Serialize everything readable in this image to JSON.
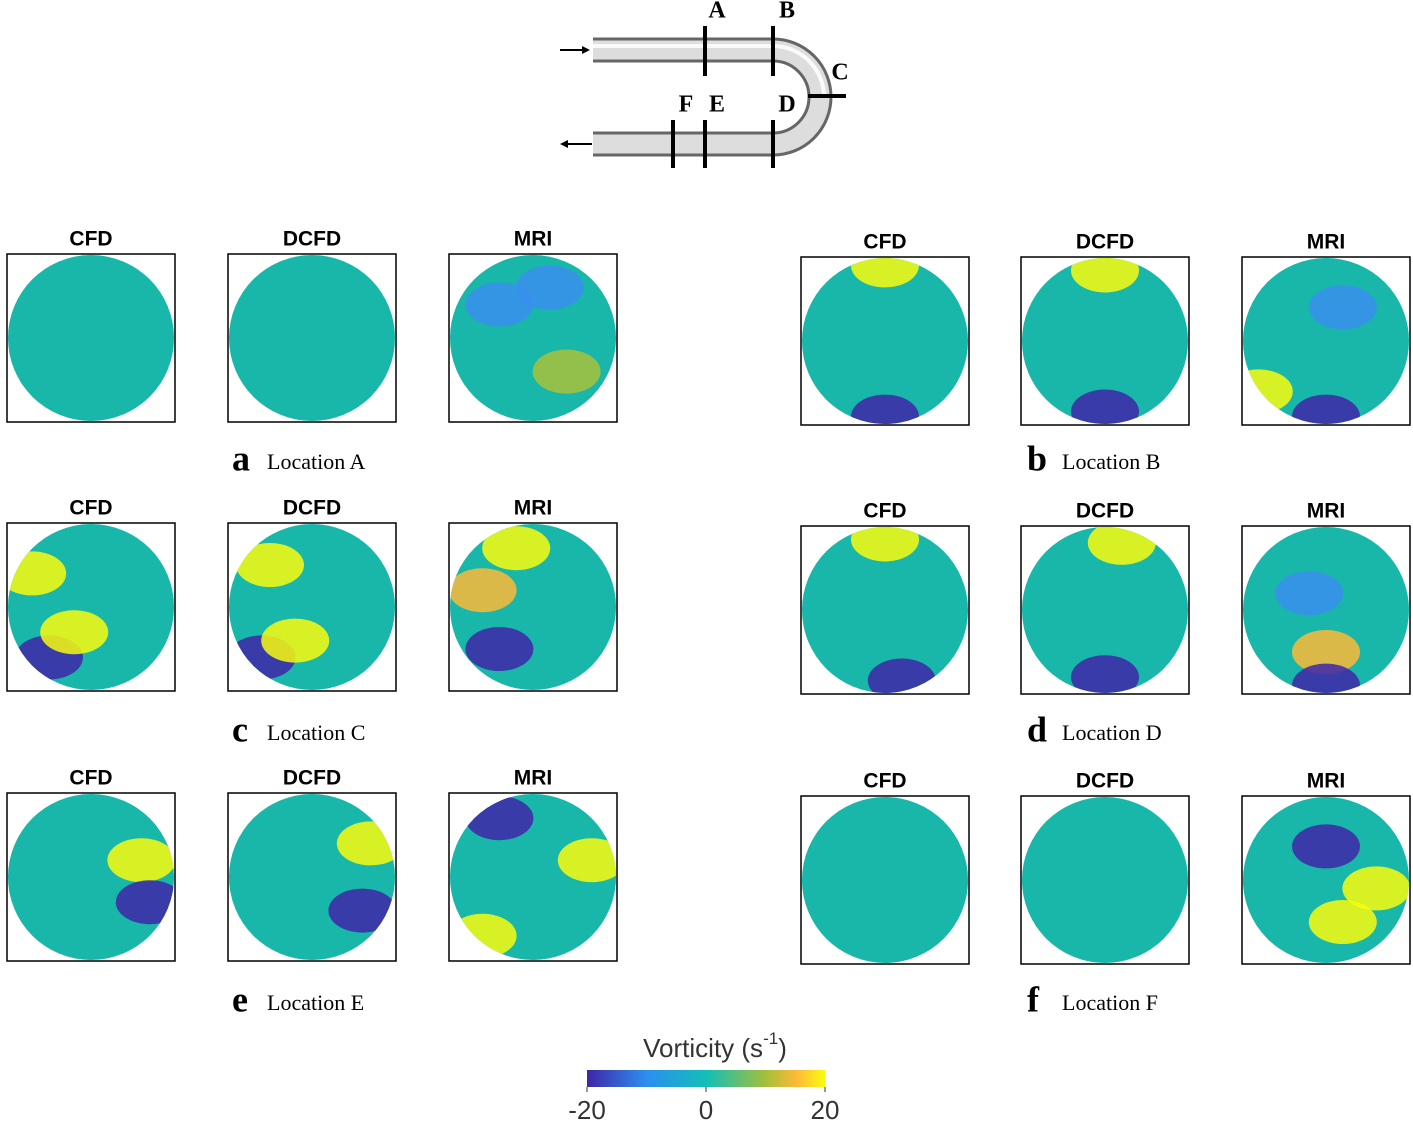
{
  "diagram": {
    "labels": [
      "A",
      "B",
      "C",
      "D",
      "E",
      "F"
    ]
  },
  "panels": [
    {
      "letter": "a",
      "caption": "Location A",
      "titles": [
        "CFD",
        "DCFD",
        "MRI"
      ]
    },
    {
      "letter": "b",
      "caption": "Location B",
      "titles": [
        "CFD",
        "DCFD",
        "MRI"
      ]
    },
    {
      "letter": "c",
      "caption": "Location C",
      "titles": [
        "CFD",
        "DCFD",
        "MRI"
      ]
    },
    {
      "letter": "d",
      "caption": "Location D",
      "titles": [
        "CFD",
        "DCFD",
        "MRI"
      ]
    },
    {
      "letter": "e",
      "caption": "Location E",
      "titles": [
        "CFD",
        "DCFD",
        "MRI"
      ]
    },
    {
      "letter": "f",
      "caption": "Location F",
      "titles": [
        "CFD",
        "DCFD",
        "MRI"
      ]
    }
  ],
  "colorbar": {
    "title": "Vorticity (s",
    "title_sup": "-1",
    "title_end": ")",
    "lim": [
      -20,
      20
    ],
    "ticks": [
      -20,
      0,
      20
    ]
  }
}
